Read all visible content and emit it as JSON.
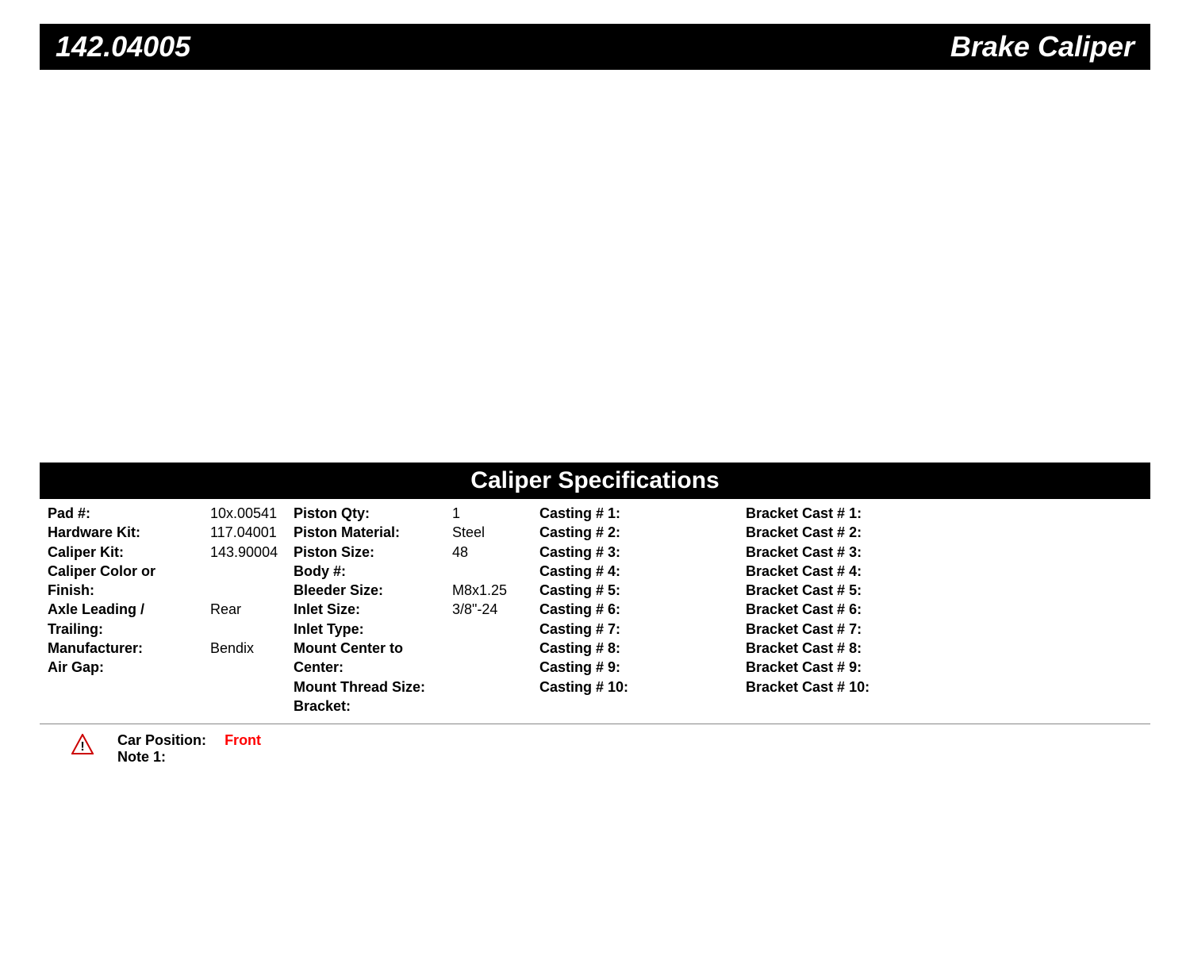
{
  "header": {
    "part_number": "142.04005",
    "title": "Brake Caliper"
  },
  "section_title": "Caliper Specifications",
  "col1": [
    {
      "label": "Pad #:",
      "value": "10x.00541"
    },
    {
      "label": "Hardware Kit:",
      "value": "117.04001"
    },
    {
      "label": "Caliper Kit:",
      "value": "143.90004"
    },
    {
      "label": "Caliper Color or Finish:",
      "value": ""
    },
    {
      "label": "Axle Leading / Trailing:",
      "value": "Rear"
    },
    {
      "label": "Manufacturer:",
      "value": "Bendix"
    },
    {
      "label": "Air Gap:",
      "value": ""
    }
  ],
  "col2": [
    {
      "label": "Piston Qty:",
      "value": "1"
    },
    {
      "label": "Piston Material:",
      "value": "Steel"
    },
    {
      "label": "Piston Size:",
      "value": "48"
    },
    {
      "label": "Body #:",
      "value": ""
    },
    {
      "label": "Bleeder Size:",
      "value": "M8x1.25"
    },
    {
      "label": "Inlet Size:",
      "value": "3/8\"-24"
    },
    {
      "label": "Inlet Type:",
      "value": ""
    },
    {
      "label": "Mount Center to Center:",
      "value": ""
    },
    {
      "label": "Mount Thread Size:",
      "value": ""
    },
    {
      "label": "Bracket:",
      "value": ""
    }
  ],
  "col3": [
    {
      "label": "Casting # 1:",
      "value": ""
    },
    {
      "label": "Casting # 2:",
      "value": ""
    },
    {
      "label": "Casting # 3:",
      "value": ""
    },
    {
      "label": "Casting # 4:",
      "value": ""
    },
    {
      "label": "Casting # 5:",
      "value": ""
    },
    {
      "label": "Casting # 6:",
      "value": ""
    },
    {
      "label": "Casting # 7:",
      "value": ""
    },
    {
      "label": "Casting # 8:",
      "value": ""
    },
    {
      "label": "Casting # 9:",
      "value": ""
    },
    {
      "label": "Casting # 10:",
      "value": ""
    }
  ],
  "col4": [
    {
      "label": "Bracket Cast # 1:",
      "value": ""
    },
    {
      "label": "Bracket Cast # 2:",
      "value": ""
    },
    {
      "label": "Bracket Cast # 3:",
      "value": ""
    },
    {
      "label": "Bracket Cast # 4:",
      "value": ""
    },
    {
      "label": "Bracket Cast # 5:",
      "value": ""
    },
    {
      "label": "Bracket Cast # 6:",
      "value": ""
    },
    {
      "label": "Bracket Cast # 7:",
      "value": ""
    },
    {
      "label": "Bracket Cast # 8:",
      "value": ""
    },
    {
      "label": "Bracket Cast # 9:",
      "value": ""
    },
    {
      "label": "Bracket Cast # 10:",
      "value": ""
    }
  ],
  "footer": {
    "car_position_label": "Car Position:",
    "car_position_value": "Front",
    "note_label": "Note 1:",
    "note_value": ""
  },
  "colors": {
    "header_bg": "#000000",
    "header_fg": "#ffffff",
    "accent": "#ff0000",
    "warning_border": "#cc0000",
    "warning_fill": "#ffffff"
  }
}
